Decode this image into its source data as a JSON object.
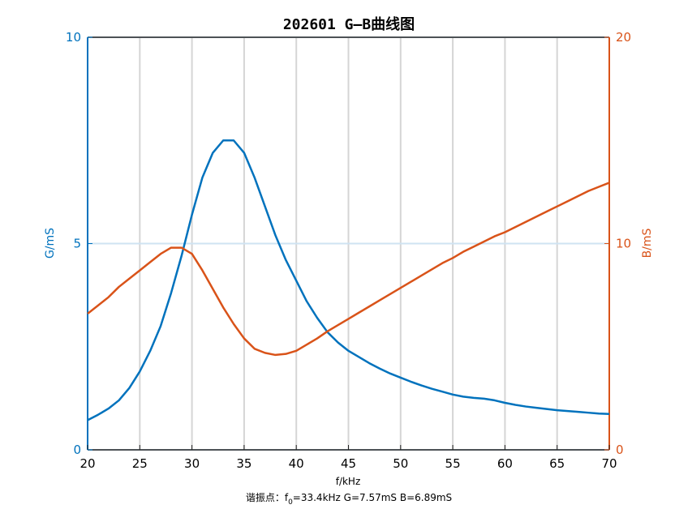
{
  "chart_data": {
    "type": "line",
    "title": "202601 G—B曲线图",
    "x_label": "f/kHz",
    "y_label": "G/mS",
    "y2_label": "B/mS",
    "annotation": {
      "prefix": "谐振点：f",
      "subscript": "0",
      "suffix": "=33.4kHz  G=7.57mS  B=6.89mS"
    },
    "x": [
      20,
      21,
      22,
      23,
      24,
      25,
      26,
      27,
      28,
      29,
      30,
      31,
      32,
      33,
      34,
      35,
      36,
      37,
      38,
      39,
      40,
      41,
      42,
      43,
      44,
      45,
      46,
      47,
      48,
      49,
      50,
      51,
      52,
      53,
      54,
      55,
      56,
      57,
      58,
      59,
      60,
      61,
      62,
      63,
      64,
      65,
      66,
      67,
      68,
      69,
      70
    ],
    "series": [
      {
        "name": "G",
        "color": "#0072bd",
        "values": [
          0.72,
          0.85,
          1.0,
          1.2,
          1.5,
          1.9,
          2.4,
          3.0,
          3.8,
          4.7,
          5.7,
          6.6,
          7.2,
          7.5,
          7.5,
          7.2,
          6.6,
          5.9,
          5.2,
          4.6,
          4.1,
          3.6,
          3.2,
          2.85,
          2.6,
          2.4,
          2.25,
          2.1,
          1.97,
          1.85,
          1.75,
          1.65,
          1.56,
          1.48,
          1.41,
          1.34,
          1.29,
          1.26,
          1.24,
          1.2,
          1.14,
          1.09,
          1.05,
          1.02,
          0.99,
          0.96,
          0.94,
          0.92,
          0.9,
          0.88,
          0.87
        ]
      },
      {
        "name": "B",
        "color": "#d95319",
        "axis": "y2",
        "values": [
          6.6,
          7.0,
          7.4,
          7.9,
          8.3,
          8.7,
          9.1,
          9.5,
          9.8,
          9.8,
          9.5,
          8.7,
          7.8,
          6.9,
          6.1,
          5.4,
          4.9,
          4.7,
          4.6,
          4.65,
          4.8,
          5.1,
          5.4,
          5.75,
          6.05,
          6.35,
          6.65,
          6.95,
          7.25,
          7.55,
          7.85,
          8.15,
          8.45,
          8.75,
          9.05,
          9.3,
          9.6,
          9.85,
          10.1,
          10.35,
          10.55,
          10.8,
          11.05,
          11.3,
          11.55,
          11.8,
          12.05,
          12.3,
          12.55,
          12.75,
          12.95
        ]
      }
    ],
    "xlim": [
      20,
      70
    ],
    "xticks": [
      20,
      25,
      30,
      35,
      40,
      45,
      50,
      55,
      60,
      65,
      70
    ],
    "ylim": [
      0,
      10
    ],
    "yticks": [
      0,
      5,
      10
    ],
    "y2lim": [
      0,
      20
    ],
    "y2ticks": [
      0,
      10,
      20
    ],
    "grid": true
  }
}
